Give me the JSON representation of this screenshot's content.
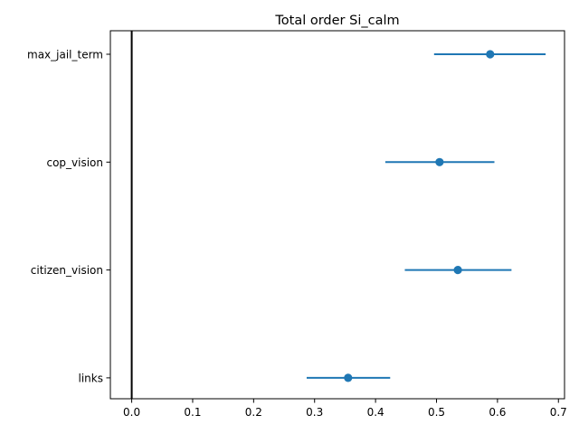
{
  "chart_data": {
    "type": "scatter",
    "title": "Total order Si_calm",
    "xlabel": "",
    "ylabel": "",
    "xlim": [
      -0.035,
      0.71
    ],
    "xticks": [
      0.0,
      0.1,
      0.2,
      0.3,
      0.4,
      0.5,
      0.6,
      0.7
    ],
    "xtick_labels": [
      "0.0",
      "0.1",
      "0.2",
      "0.3",
      "0.4",
      "0.5",
      "0.6",
      "0.7"
    ],
    "grid": false,
    "reference_line_x": 0.0,
    "categories": [
      "max_jail_term",
      "cop_vision",
      "citizen_vision",
      "links"
    ],
    "values": [
      0.588,
      0.505,
      0.535,
      0.355
    ],
    "error_low": [
      0.496,
      0.416,
      0.448,
      0.287
    ],
    "error_high": [
      0.679,
      0.595,
      0.623,
      0.424
    ],
    "colors": {
      "marker": "#1f77b4",
      "reference_line": "#000000",
      "axes": "#000000"
    }
  }
}
